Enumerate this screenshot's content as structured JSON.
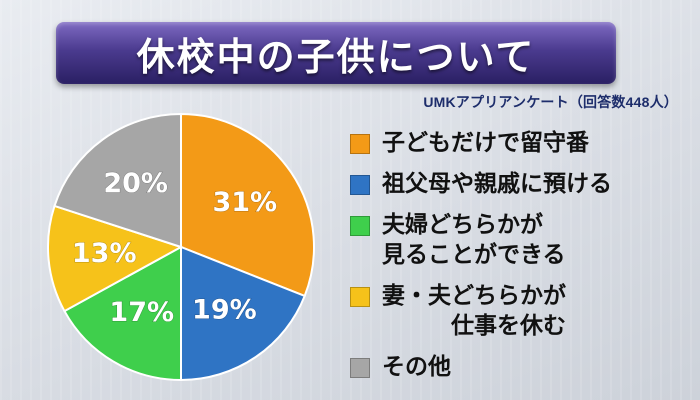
{
  "title": "休校中の子供について",
  "subtitle": "UMKアプリアンケート（回答数448人）",
  "chart_data": {
    "type": "pie",
    "slices": [
      {
        "label": "子どもだけで留守番",
        "value": 31,
        "value_label": "31%",
        "color": "#f39a17"
      },
      {
        "label": "祖父母や親戚に預ける",
        "value": 19,
        "value_label": "19%",
        "color": "#2f74c4"
      },
      {
        "label": "夫婦どちらかが見ることができる",
        "label_lines": [
          "夫婦どちらかが",
          "見ることができる"
        ],
        "value": 17,
        "value_label": "17%",
        "color": "#3fcf4c"
      },
      {
        "label": "妻・夫どちらかが仕事を休む",
        "label_lines": [
          "妻・夫どちらかが",
          "仕事を休む"
        ],
        "value": 13,
        "value_label": "13%",
        "color": "#f6c21a"
      },
      {
        "label": "その他",
        "value": 20,
        "value_label": "20%",
        "color": "#a6a6a6"
      }
    ],
    "start_angle_deg": 0,
    "direction": "clockwise",
    "legend_position": "right"
  }
}
